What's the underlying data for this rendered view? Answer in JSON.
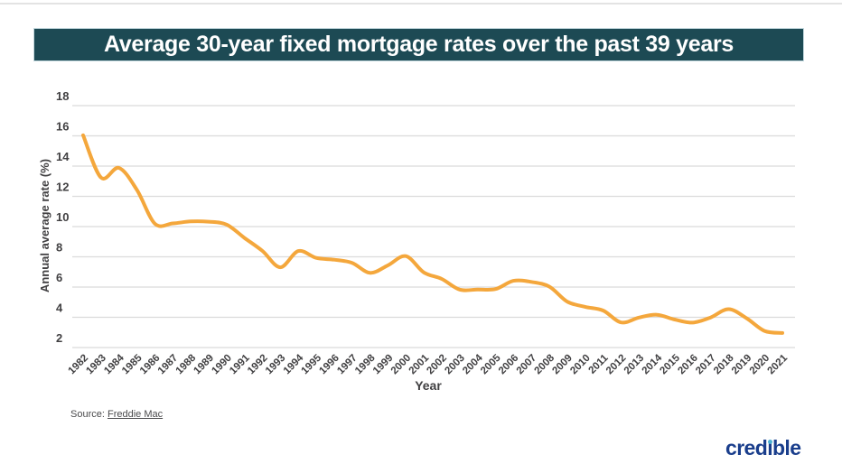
{
  "title": "Average 30-year fixed mortgage rates over the past 39 years",
  "chart_data": {
    "type": "line",
    "title": "Average 30-year fixed mortgage rates over the past 39 years",
    "xlabel": "Year",
    "ylabel": "Annual average rate (%)",
    "x": [
      "1982",
      "1983",
      "1984",
      "1985",
      "1986",
      "1987",
      "1988",
      "1989",
      "1990",
      "1991",
      "1992",
      "1993",
      "1994",
      "1995",
      "1996",
      "1997",
      "1998",
      "1999",
      "2000",
      "2001",
      "2002",
      "2003",
      "2004",
      "2005",
      "2006",
      "2007",
      "2008",
      "2009",
      "2010",
      "2011",
      "2012",
      "2013",
      "2014",
      "2015",
      "2016",
      "2017",
      "2018",
      "2019",
      "2020",
      "2021"
    ],
    "values": [
      16.04,
      13.24,
      13.88,
      12.43,
      10.19,
      10.21,
      10.34,
      10.32,
      10.13,
      9.25,
      8.39,
      7.31,
      8.38,
      7.93,
      7.81,
      7.6,
      6.94,
      7.44,
      8.05,
      6.97,
      6.54,
      5.83,
      5.84,
      5.87,
      6.41,
      6.34,
      6.03,
      5.04,
      4.69,
      4.45,
      3.66,
      3.98,
      4.17,
      3.85,
      3.65,
      3.99,
      4.54,
      3.94,
      3.1,
      2.96
    ],
    "ylim": [
      2,
      18
    ],
    "yticks": [
      2,
      4,
      6,
      8,
      10,
      12,
      14,
      16,
      18
    ],
    "grid": "horizontal-only",
    "legend": "none",
    "line_style": "smoothed-spline, no markers"
  },
  "source": {
    "prefix": "Source:",
    "link_text": "Freddie Mac"
  },
  "logo": {
    "pre": "cred",
    "i": "ı",
    "post": "ble"
  },
  "theme": {
    "titlebar-bg": "#1D4A54",
    "titlebar-text": "#FFFFFF",
    "line-color": "#F4A73C",
    "grid-color": "#DBDBDB",
    "axis-text": "#414042",
    "source-text": "#4A4A4C",
    "logo-color": "#1A3E8C",
    "logo-dot": "#4FB3D4"
  }
}
